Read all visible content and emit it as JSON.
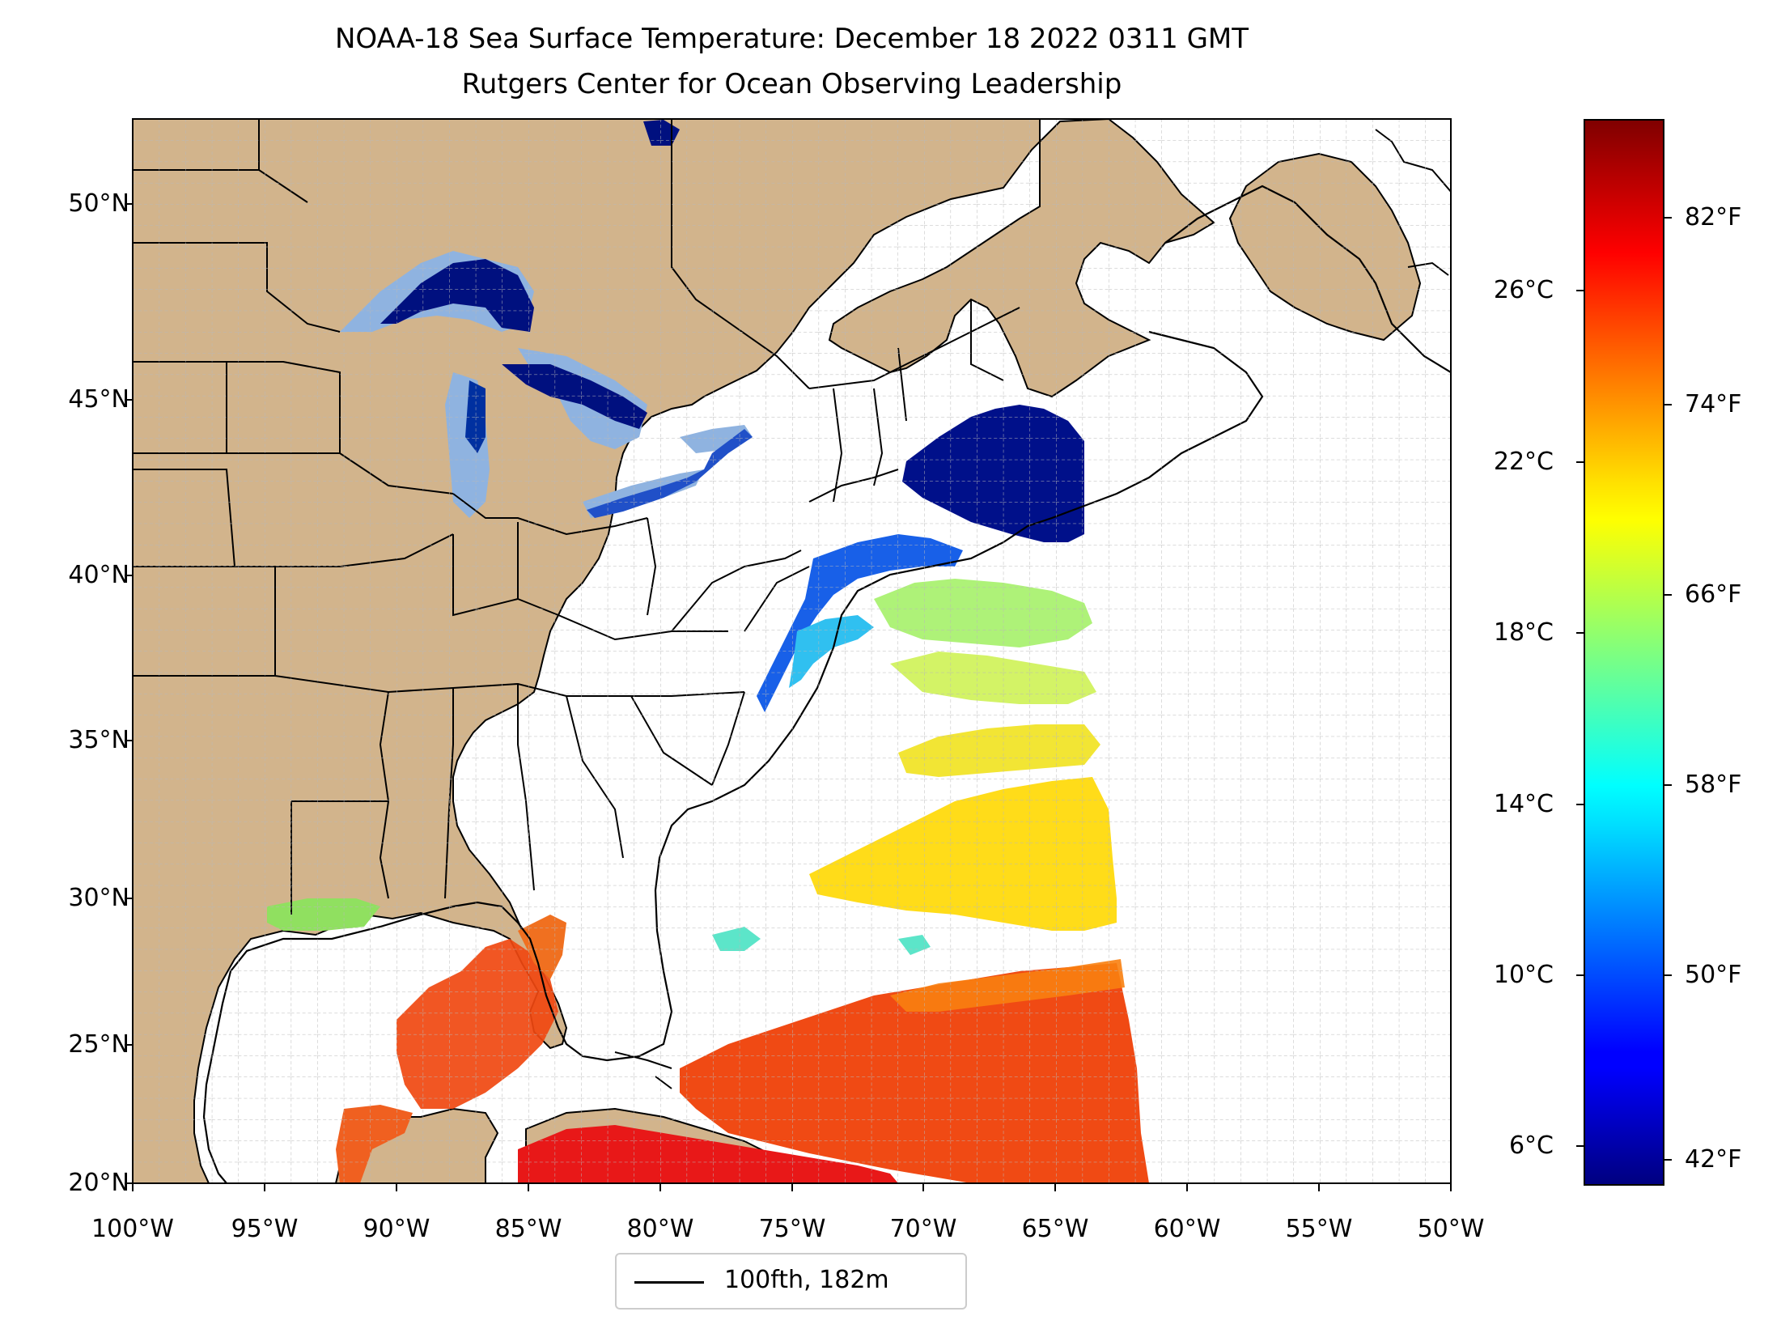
{
  "title": {
    "line1": "NOAA-18 Sea Surface Temperature: December 18 2022 0311 GMT",
    "line2": "Rutgers Center for Ocean Observing Leadership"
  },
  "map": {
    "lon_ticks": [
      "100°W",
      "95°W",
      "90°W",
      "85°W",
      "80°W",
      "75°W",
      "70°W",
      "65°W",
      "60°W",
      "55°W",
      "50°W"
    ],
    "lat_ticks": [
      "50°N",
      "45°N",
      "40°N",
      "35°N",
      "30°N",
      "25°N",
      "20°N"
    ],
    "lon_range": [
      -100,
      -50
    ],
    "lat_range": [
      20,
      52.3
    ],
    "land_color": "#d2b48c",
    "no_data_color": "#ffffff",
    "gridlines": true
  },
  "colorbar": {
    "colormap": "jet",
    "celsius_ticks": [
      "26°C",
      "22°C",
      "18°C",
      "14°C",
      "10°C",
      "6°C"
    ],
    "fahrenheit_ticks": [
      "82°F",
      "74°F",
      "66°F",
      "58°F",
      "50°F",
      "42°F"
    ]
  },
  "legend": {
    "label": "100fth, 182m",
    "line_color": "#000000"
  }
}
